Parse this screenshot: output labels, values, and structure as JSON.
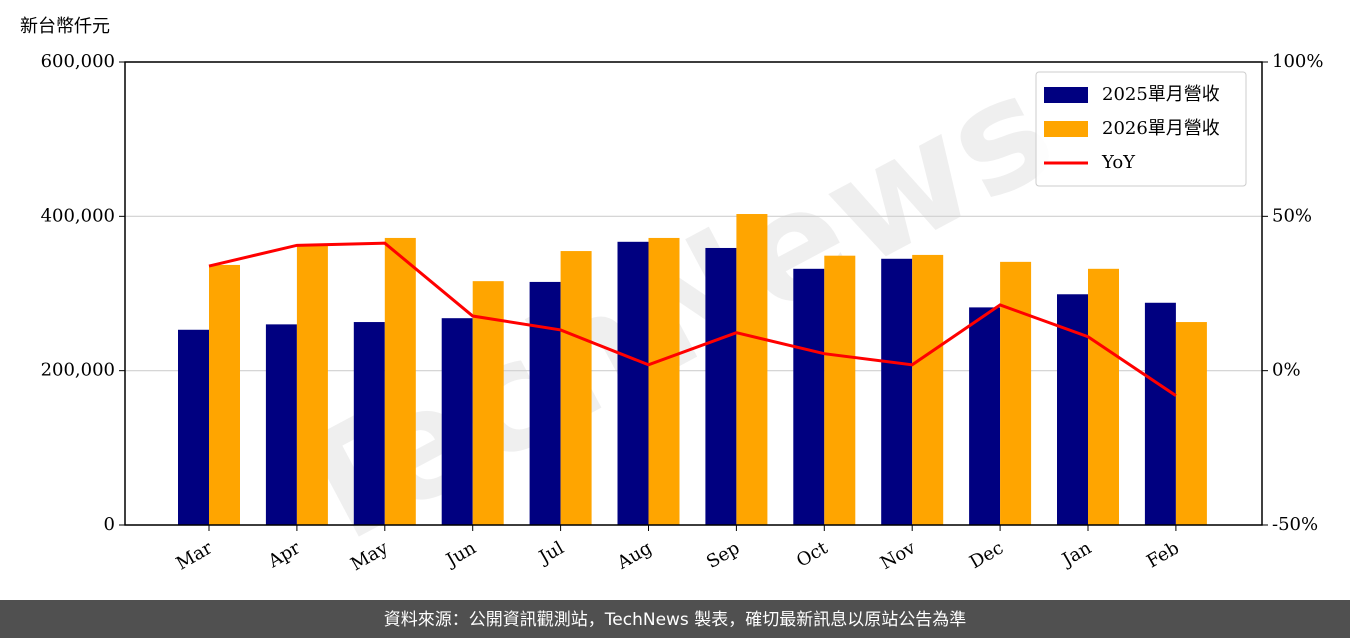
{
  "chart_data": {
    "type": "bar",
    "y_label": "新台幣仟元",
    "watermark": "TechNews",
    "source_note": "資料來源：公開資訊觀測站，TechNews 製表，確切最新訊息以原站公告為準",
    "categories": [
      "Mar",
      "Apr",
      "May",
      "Jun",
      "Jul",
      "Aug",
      "Sep",
      "Oct",
      "Nov",
      "Dec",
      "Jan",
      "Feb"
    ],
    "series": [
      {
        "name": "2025單月營收",
        "color": "#000080",
        "values": [
          253000,
          260000,
          263000,
          268000,
          315000,
          367000,
          359000,
          332000,
          345000,
          282000,
          299000,
          288000
        ]
      },
      {
        "name": "2026單月營收",
        "color": "#ffa500",
        "values": [
          337000,
          364000,
          372000,
          316000,
          355000,
          372000,
          403000,
          349000,
          350000,
          341000,
          332000,
          263000
        ]
      },
      {
        "name": "YoY",
        "color": "#ff0000",
        "type": "line",
        "axis": "y2",
        "values": [
          33.9,
          40.6,
          41.3,
          17.7,
          13.2,
          1.9,
          12.3,
          5.5,
          1.9,
          21.3,
          11.0,
          -8.1
        ]
      }
    ],
    "ylim": [
      0,
      600000
    ],
    "yticks": [
      0,
      {
        "value": 200000,
        "label": "200,000"
      },
      {
        "value": 400000,
        "label": "400,000"
      },
      {
        "value": 600000,
        "label": "600,000"
      }
    ],
    "y2lim": [
      -50,
      100
    ],
    "y2ticks": [
      {
        "value": -50,
        "label": "-50%"
      },
      {
        "value": 0,
        "label": "0%"
      },
      {
        "value": 50,
        "label": "50%"
      },
      {
        "value": 100,
        "label": "100%"
      }
    ],
    "grid": true,
    "legend": "upper right"
  }
}
